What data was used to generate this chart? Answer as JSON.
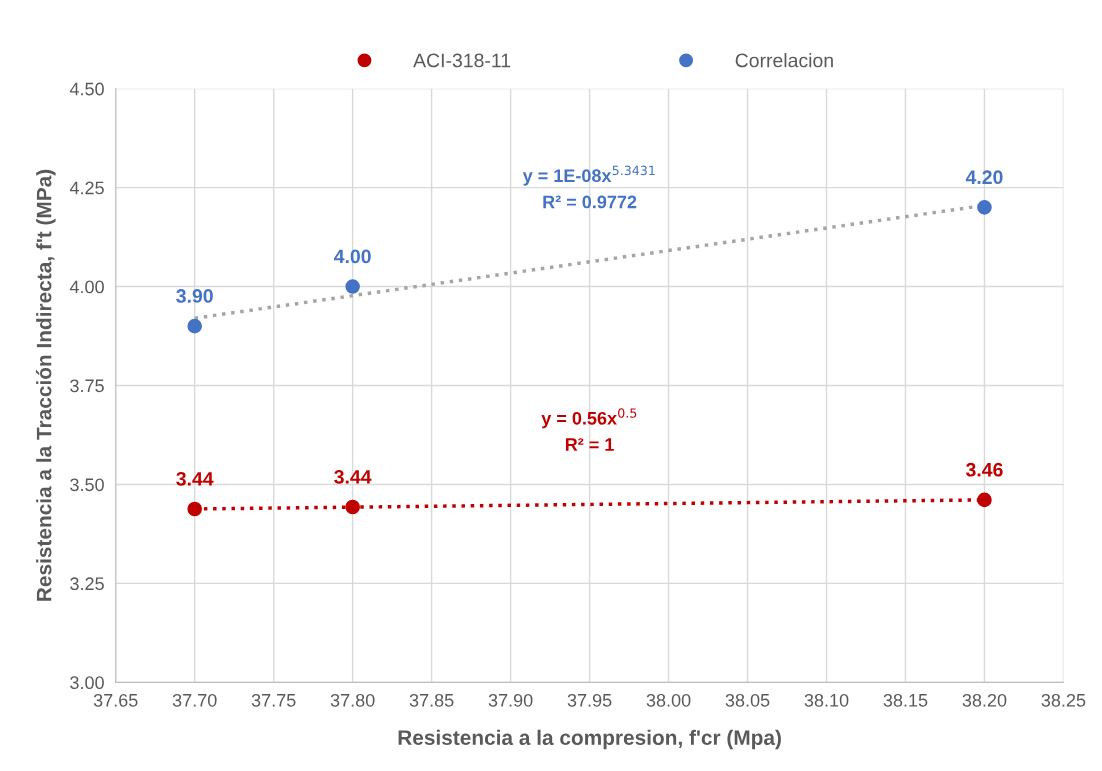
{
  "chart_data": {
    "type": "scatter",
    "xlabel": "Resistencia a la compresion, f'cr (Mpa)",
    "ylabel": "Resistencia a la Tracción Indirecta, f't (MPa)",
    "series": [
      {
        "name": "ACI-318-11",
        "color": "#c00000",
        "x": [
          37.7,
          37.8,
          38.2
        ],
        "values": [
          3.438,
          3.443,
          3.461
        ],
        "value_labels": [
          "3.44",
          "3.44",
          "3.46"
        ]
      },
      {
        "name": "Correlacion",
        "color": "#4472c4",
        "x": [
          37.7,
          37.8,
          38.2
        ],
        "values": [
          3.9,
          4.0,
          4.2
        ],
        "value_labels": [
          "3.90",
          "4.00",
          "4.20"
        ]
      },
      {
        "type": "line",
        "color": "#a5a5a5",
        "x": [
          37.7,
          38.2
        ],
        "values": [
          3.92,
          4.205
        ],
        "line_style": "dotted",
        "marker": "none"
      },
      {
        "type": "line",
        "color": "#c00000",
        "x": [
          37.7,
          38.2
        ],
        "values": [
          3.438,
          3.461
        ],
        "line_style": "dotted",
        "marker": "none"
      }
    ],
    "annotations": [
      "y = 1E-08x$^{5.3431}$",
      "R² = 0.9772",
      "y = 0.56x$^{0.5}$",
      "R² = 1"
    ],
    "xlim": [
      37.65,
      38.25
    ],
    "xticks": [
      {
        "value": 37.65,
        "label": "37.65"
      },
      {
        "value": 37.7,
        "label": "37.70"
      },
      {
        "value": 37.75,
        "label": "37.75"
      },
      {
        "value": 37.8,
        "label": "37.80"
      },
      {
        "value": 37.85,
        "label": "37.85"
      },
      {
        "value": 37.9,
        "label": "37.90"
      },
      {
        "value": 37.95,
        "label": "37.95"
      },
      {
        "value": 38.0,
        "label": "38.00"
      },
      {
        "value": 38.05,
        "label": "38.05"
      },
      {
        "value": 38.1,
        "label": "38.10"
      },
      {
        "value": 38.15,
        "label": "38.15"
      },
      {
        "value": 38.2,
        "label": "38.20"
      },
      {
        "value": 38.25,
        "label": "38.25"
      }
    ],
    "ylim": [
      3.0,
      4.5
    ],
    "yticks": [
      {
        "value": 3.0,
        "label": "3.00"
      },
      {
        "value": 3.25,
        "label": "3.25"
      },
      {
        "value": 3.5,
        "label": "3.50"
      },
      {
        "value": 3.75,
        "label": "3.75"
      },
      {
        "value": 4.0,
        "label": "4.00"
      },
      {
        "value": 4.25,
        "label": "4.25"
      },
      {
        "value": 4.5,
        "label": "4.50"
      }
    ],
    "grid": true,
    "legend": "top",
    "marker": "circle"
  }
}
